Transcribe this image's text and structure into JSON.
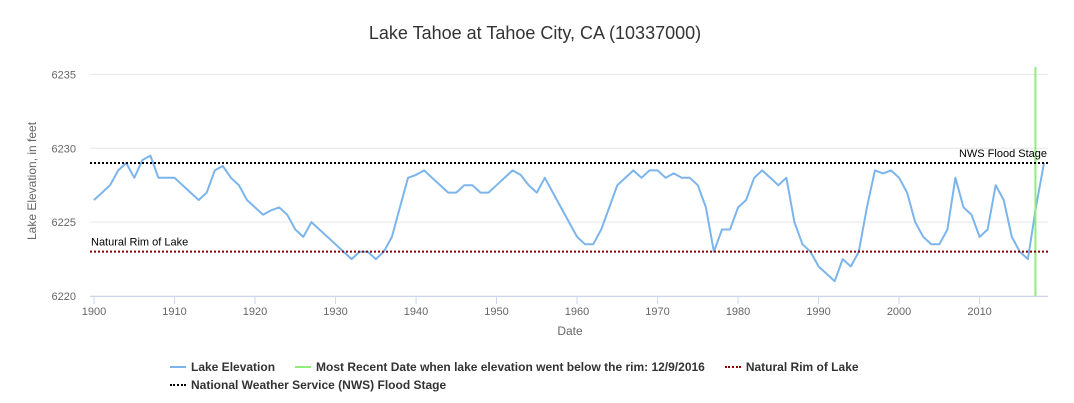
{
  "chart_data": {
    "type": "line",
    "title": "Lake Tahoe at Tahoe City, CA (10337000)",
    "xlabel": "Date",
    "ylabel": "Lake Elevation, in feet",
    "xlim": [
      1899.5,
      2018.5
    ],
    "ylim": [
      6220,
      6235.5
    ],
    "x_ticks": [
      1900,
      1910,
      1920,
      1930,
      1940,
      1950,
      1960,
      1970,
      1980,
      1990,
      2000,
      2010
    ],
    "y_ticks": [
      6220,
      6225,
      6230,
      6235
    ],
    "grid": true,
    "legend_position": "bottom",
    "series": [
      {
        "name": "Lake Elevation",
        "color": "#7cb5ec",
        "x": [
          1900.0,
          1901.0,
          1902.0,
          1903.0,
          1904.0,
          1905.0,
          1906.0,
          1907.0,
          1908.0,
          1909.0,
          1910.0,
          1911.0,
          1912.0,
          1913.0,
          1914.0,
          1915.0,
          1916.0,
          1917.0,
          1918.0,
          1919.0,
          1920.0,
          1921.0,
          1922.0,
          1923.0,
          1924.0,
          1925.0,
          1926.0,
          1927.0,
          1928.0,
          1929.0,
          1930.0,
          1931.0,
          1932.0,
          1933.0,
          1934.0,
          1935.0,
          1936.0,
          1937.0,
          1938.0,
          1939.0,
          1940.0,
          1941.0,
          1942.0,
          1943.0,
          1944.0,
          1945.0,
          1946.0,
          1947.0,
          1948.0,
          1949.0,
          1950.0,
          1951.0,
          1952.0,
          1953.0,
          1954.0,
          1955.0,
          1956.0,
          1957.0,
          1958.0,
          1959.0,
          1960.0,
          1961.0,
          1962.0,
          1963.0,
          1964.0,
          1965.0,
          1966.0,
          1967.0,
          1968.0,
          1969.0,
          1970.0,
          1971.0,
          1972.0,
          1973.0,
          1974.0,
          1975.0,
          1976.0,
          1977.0,
          1978.0,
          1979.0,
          1980.0,
          1981.0,
          1982.0,
          1983.0,
          1984.0,
          1985.0,
          1986.0,
          1987.0,
          1988.0,
          1989.0,
          1990.0,
          1991.0,
          1992.0,
          1993.0,
          1994.0,
          1995.0,
          1996.0,
          1997.0,
          1998.0,
          1999.0,
          2000.0,
          2001.0,
          2002.0,
          2003.0,
          2004.0,
          2005.0,
          2006.0,
          2007.0,
          2008.0,
          2009.0,
          2010.0,
          2011.0,
          2012.0,
          2013.0,
          2014.0,
          2015.0,
          2016.0,
          2017.0,
          2018.0
        ],
        "y": [
          6226.5,
          6227.0,
          6227.5,
          6228.5,
          6229.0,
          6228.0,
          6229.2,
          6229.5,
          6228.0,
          6228.0,
          6228.0,
          6227.5,
          6227.0,
          6226.5,
          6227.0,
          6228.5,
          6228.8,
          6228.0,
          6227.5,
          6226.5,
          6226.0,
          6225.5,
          6225.8,
          6226.0,
          6225.5,
          6224.5,
          6224.0,
          6225.0,
          6224.5,
          6224.0,
          6223.5,
          6223.0,
          6222.5,
          6223.0,
          6223.0,
          6222.5,
          6223.0,
          6224.0,
          6226.0,
          6228.0,
          6228.2,
          6228.5,
          6228.0,
          6227.5,
          6227.0,
          6227.0,
          6227.5,
          6227.5,
          6227.0,
          6227.0,
          6227.5,
          6228.0,
          6228.5,
          6228.2,
          6227.5,
          6227.0,
          6228.0,
          6227.0,
          6226.0,
          6225.0,
          6224.0,
          6223.5,
          6223.5,
          6224.5,
          6226.0,
          6227.5,
          6228.0,
          6228.5,
          6228.0,
          6228.5,
          6228.5,
          6228.0,
          6228.3,
          6228.0,
          6228.0,
          6227.5,
          6226.0,
          6223.0,
          6224.5,
          6224.5,
          6226.0,
          6226.5,
          6228.0,
          6228.5,
          6228.0,
          6227.5,
          6228.0,
          6225.0,
          6223.5,
          6223.0,
          6222.0,
          6221.5,
          6221.0,
          6222.5,
          6222.0,
          6223.0,
          6226.0,
          6228.5,
          6228.3,
          6228.5,
          6228.0,
          6227.0,
          6225.0,
          6224.0,
          6223.5,
          6223.5,
          6224.5,
          6228.0,
          6226.0,
          6225.5,
          6224.0,
          6224.5,
          6227.5,
          6226.5,
          6224.0,
          6223.0,
          6222.5,
          6226.0,
          6229.0
        ]
      }
    ],
    "reference_lines": [
      {
        "name": "Most Recent Date when lake elevation went below the rim: 12/9/2016",
        "orientation": "vertical",
        "x": 2016.94,
        "color": "#90ed7d",
        "style": "solid"
      },
      {
        "name": "Natural Rim of Lake",
        "orientation": "horizontal",
        "y": 6223.0,
        "color": "#8b0000",
        "style": "dotted",
        "label": "Natural Rim of Lake"
      },
      {
        "name": "National Weather Service (NWS) Flood Stage",
        "orientation": "horizontal",
        "y": 6229.0,
        "color": "#000000",
        "style": "dotted",
        "label": "NWS Flood Stage"
      }
    ]
  },
  "legend": {
    "items": [
      {
        "label": "Lake Elevation",
        "color": "#7cb5ec",
        "style": "solid"
      },
      {
        "label": "Most Recent Date when lake elevation went below the rim: 12/9/2016",
        "color": "#90ed7d",
        "style": "solid"
      },
      {
        "label": "Natural Rim of Lake",
        "color": "#8b0000",
        "style": "dotted"
      },
      {
        "label": "National Weather Service (NWS) Flood Stage",
        "color": "#000000",
        "style": "dotted"
      }
    ]
  }
}
